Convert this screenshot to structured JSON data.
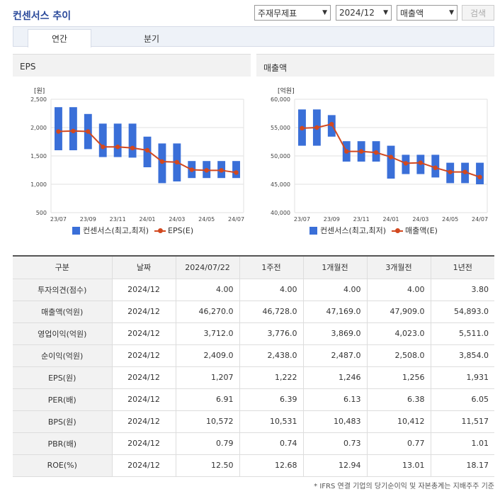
{
  "title": "컨센서스 추이",
  "selects": {
    "type": "주재무제표",
    "period": "2024/12",
    "metric": "매출액"
  },
  "search_label": "검색",
  "tabs": [
    "연간",
    "분기"
  ],
  "chart_data": [
    {
      "type": "bar",
      "title": "EPS",
      "ylabel": "[원]",
      "ylim": [
        500,
        2500
      ],
      "yticks": [
        "2,500",
        "2,000",
        "1,500",
        "1,000",
        "500"
      ],
      "categories": [
        "23/07",
        "23/08",
        "23/09",
        "23/10",
        "23/11",
        "23/12",
        "24/01",
        "24/02",
        "24/03",
        "24/04",
        "24/05",
        "24/06",
        "24/07"
      ],
      "xtick_labels": [
        "23/07",
        "23/09",
        "23/11",
        "24/01",
        "24/03",
        "24/05",
        "24/07"
      ],
      "series": [
        {
          "name": "컨센서스(최고,최저)",
          "kind": "range",
          "low": [
            1600,
            1600,
            1620,
            1480,
            1480,
            1470,
            1300,
            1020,
            1050,
            1110,
            1110,
            1110,
            1110
          ],
          "high": [
            2360,
            2360,
            2240,
            2070,
            2070,
            2070,
            1840,
            1720,
            1720,
            1410,
            1410,
            1410,
            1410
          ],
          "color": "#3a6fd8"
        },
        {
          "name": "EPS(E)",
          "kind": "line",
          "values": [
            1931,
            1940,
            1931,
            1660,
            1660,
            1640,
            1600,
            1400,
            1390,
            1256,
            1246,
            1246,
            1207
          ],
          "color": "#d2481f"
        }
      ]
    },
    {
      "type": "bar",
      "title": "매출액",
      "ylabel": "[억원]",
      "ylim": [
        40000,
        60000
      ],
      "yticks": [
        "60,000",
        "55,000",
        "50,000",
        "45,000",
        "40,000"
      ],
      "categories": [
        "23/07",
        "23/08",
        "23/09",
        "23/10",
        "23/11",
        "23/12",
        "24/01",
        "24/02",
        "24/03",
        "24/04",
        "24/05",
        "24/06",
        "24/07"
      ],
      "xtick_labels": [
        "23/07",
        "23/09",
        "23/11",
        "24/01",
        "24/03",
        "24/05",
        "24/07"
      ],
      "series": [
        {
          "name": "컨센서스(최고,최저)",
          "kind": "range",
          "low": [
            51800,
            51800,
            53400,
            49000,
            49000,
            49000,
            46000,
            46800,
            46800,
            46200,
            45200,
            45200,
            45000
          ],
          "high": [
            58200,
            58200,
            57200,
            52600,
            52600,
            52600,
            51800,
            50200,
            50200,
            50200,
            48800,
            48800,
            48800
          ],
          "color": "#3a6fd8"
        },
        {
          "name": "매출액(E)",
          "kind": "line",
          "values": [
            54893,
            55000,
            55600,
            50800,
            50800,
            50600,
            49800,
            48700,
            48800,
            47909,
            47169,
            47169,
            46270
          ],
          "color": "#d2481f"
        }
      ]
    }
  ],
  "table": {
    "headers": [
      "구분",
      "날짜",
      "2024/07/22",
      "1주전",
      "1개월전",
      "3개월전",
      "1년전"
    ],
    "rows": [
      [
        "투자의견(점수)",
        "2024/12",
        "4.00",
        "4.00",
        "4.00",
        "4.00",
        "3.80"
      ],
      [
        "매출액(억원)",
        "2024/12",
        "46,270.0",
        "46,728.0",
        "47,169.0",
        "47,909.0",
        "54,893.0"
      ],
      [
        "영업이익(억원)",
        "2024/12",
        "3,712.0",
        "3,776.0",
        "3,869.0",
        "4,023.0",
        "5,511.0"
      ],
      [
        "순이익(억원)",
        "2024/12",
        "2,409.0",
        "2,438.0",
        "2,487.0",
        "2,508.0",
        "3,854.0"
      ],
      [
        "EPS(원)",
        "2024/12",
        "1,207",
        "1,222",
        "1,246",
        "1,256",
        "1,931"
      ],
      [
        "PER(배)",
        "2024/12",
        "6.91",
        "6.39",
        "6.13",
        "6.38",
        "6.05"
      ],
      [
        "BPS(원)",
        "2024/12",
        "10,572",
        "10,531",
        "10,483",
        "10,412",
        "11,517"
      ],
      [
        "PBR(배)",
        "2024/12",
        "0.79",
        "0.74",
        "0.73",
        "0.77",
        "1.01"
      ],
      [
        "ROE(%)",
        "2024/12",
        "12.50",
        "12.68",
        "12.94",
        "13.01",
        "18.17"
      ]
    ]
  },
  "footnote": "* IFRS 연결 기업의 당기순이익 및 자본총계는 지배주주 기준"
}
